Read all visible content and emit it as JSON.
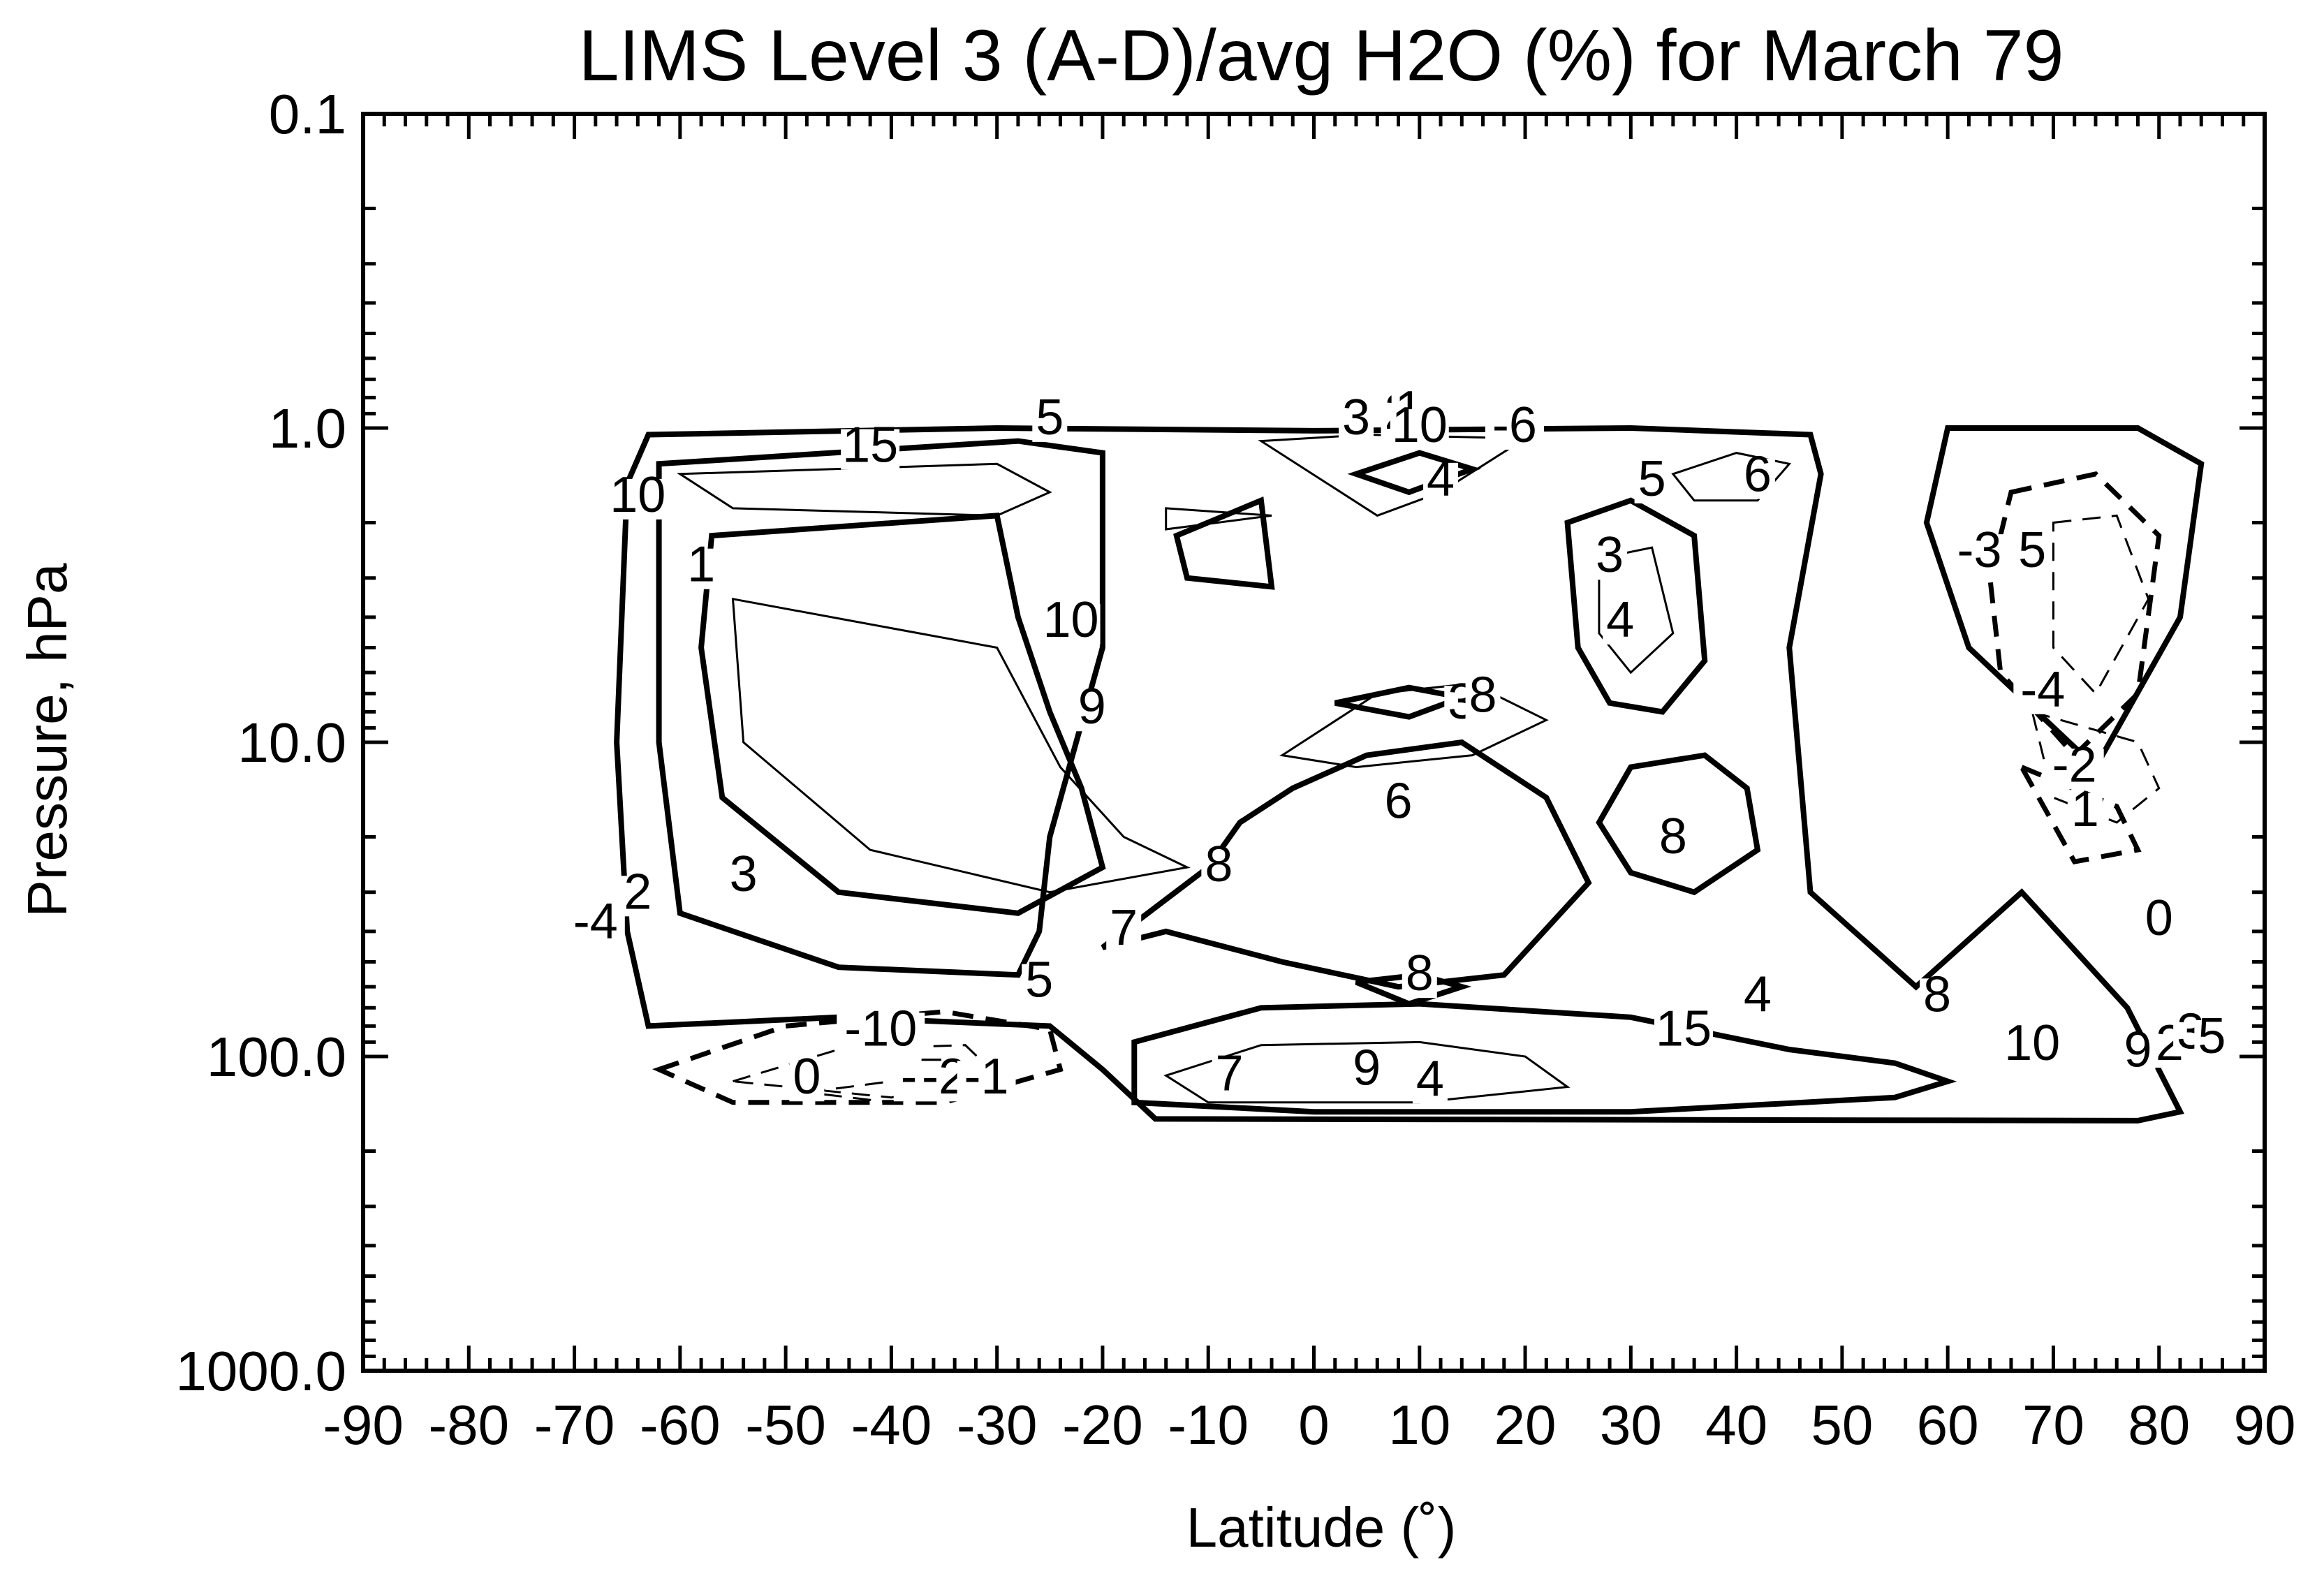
{
  "chart_data": {
    "type": "contour",
    "title": "LIMS Level 3 (A-D)/avg H2O (%) for March 79",
    "xlabel": "Latitude (˚)",
    "ylabel": "Pressure, hPa",
    "xlim": [
      -90,
      90
    ],
    "ylim": [
      1000.0,
      0.1
    ],
    "y_scale": "log",
    "x_ticks": [
      -90,
      -80,
      -70,
      -60,
      -50,
      -40,
      -30,
      -20,
      -10,
      0,
      10,
      20,
      30,
      40,
      50,
      60,
      70,
      80,
      90
    ],
    "x_tick_labels": [
      "-90",
      "-80",
      "-70",
      "-60",
      "-50",
      "-40",
      "-30",
      "-20",
      "-10",
      "0",
      "10",
      "20",
      "30",
      "40",
      "50",
      "60",
      "70",
      "80",
      "90"
    ],
    "y_ticks": [
      0.1,
      1.0,
      10.0,
      100.0,
      1000.0
    ],
    "y_tick_labels": [
      "0.1",
      "1.0",
      "10.0",
      "100.0",
      "1000.0"
    ],
    "grid": false,
    "legend": "none",
    "negative_contours": "dashed",
    "contours": [
      {
        "style": "solid-thick",
        "level": 0,
        "points": [
          [
            -65,
            1.5
          ],
          [
            -63,
            1.05
          ],
          [
            -30,
            1.0
          ],
          [
            0,
            1.02
          ],
          [
            30,
            1.0
          ],
          [
            47,
            1.05
          ],
          [
            48,
            1.4
          ],
          [
            45,
            5
          ],
          [
            47,
            30
          ],
          [
            57,
            60
          ],
          [
            67,
            30
          ],
          [
            77,
            70
          ],
          [
            82,
            150
          ],
          [
            78,
            160
          ],
          [
            -15,
            158
          ],
          [
            -20,
            110
          ],
          [
            -25,
            80
          ],
          [
            -45,
            75
          ],
          [
            -63,
            80
          ],
          [
            -65,
            40
          ],
          [
            -66,
            10
          ],
          [
            -65,
            1.5
          ]
        ]
      },
      {
        "style": "solid-thick",
        "level": 5,
        "points": [
          [
            -62,
            1.3
          ],
          [
            -28,
            1.1
          ],
          [
            -20,
            1.2
          ],
          [
            -20,
            5
          ],
          [
            -25,
            20
          ],
          [
            -26,
            40
          ],
          [
            -28,
            55
          ],
          [
            -45,
            52
          ],
          [
            -60,
            35
          ],
          [
            -62,
            10
          ],
          [
            -62,
            1.3
          ]
        ]
      },
      {
        "style": "solid-thin",
        "level": 15,
        "points": [
          [
            -60,
            1.4
          ],
          [
            -30,
            1.3
          ],
          [
            -25,
            1.6
          ],
          [
            -30,
            1.9
          ],
          [
            -55,
            1.8
          ],
          [
            -60,
            1.4
          ]
        ]
      },
      {
        "style": "solid-thick",
        "level": 10,
        "points": [
          [
            -57,
            2.2
          ],
          [
            -30,
            1.9
          ],
          [
            -28,
            4
          ],
          [
            -25,
            8
          ],
          [
            -22,
            14
          ],
          [
            -20,
            25
          ],
          [
            -28,
            35
          ],
          [
            -45,
            30
          ],
          [
            -56,
            15
          ],
          [
            -58,
            5
          ],
          [
            -57,
            2.2
          ]
        ]
      },
      {
        "style": "solid-thin",
        "level": 9,
        "points": [
          [
            -55,
            3.5
          ],
          [
            -30,
            5
          ],
          [
            -24,
            12
          ],
          [
            -18,
            20
          ],
          [
            -12,
            25
          ],
          [
            -25,
            30
          ],
          [
            -42,
            22
          ],
          [
            -54,
            10
          ],
          [
            -55,
            3.5
          ]
        ]
      },
      {
        "style": "solid-thick",
        "level": 8,
        "points": [
          [
            -13,
            2.2
          ],
          [
            -5,
            1.7
          ],
          [
            -4,
            3.2
          ],
          [
            -12,
            3.0
          ],
          [
            -13,
            2.2
          ]
        ]
      },
      {
        "style": "solid-thin",
        "level": 9,
        "points": [
          [
            -14,
            1.8
          ],
          [
            -4,
            1.9
          ],
          [
            -14,
            2.1
          ],
          [
            -14,
            1.8
          ]
        ]
      },
      {
        "style": "solid-thick",
        "level": 8,
        "points": [
          [
            -7,
            18
          ],
          [
            -2,
            14
          ],
          [
            5,
            11
          ],
          [
            14,
            10
          ],
          [
            22,
            15
          ],
          [
            26,
            28
          ],
          [
            18,
            55
          ],
          [
            8,
            60
          ],
          [
            -3,
            50
          ],
          [
            -14,
            40
          ],
          [
            -20,
            45
          ],
          [
            -10,
            25
          ],
          [
            -7,
            18
          ]
        ]
      },
      {
        "style": "solid-thin",
        "level": 6,
        "points": [
          [
            -3,
            11
          ],
          [
            6,
            7
          ],
          [
            15,
            6.5
          ],
          [
            22,
            8.5
          ],
          [
            15,
            11
          ],
          [
            4,
            12
          ],
          [
            -3,
            11
          ]
        ]
      },
      {
        "style": "solid-thick",
        "level": 9,
        "points": [
          [
            2,
            7.5
          ],
          [
            9,
            6.7
          ],
          [
            14,
            7.2
          ],
          [
            9,
            8.3
          ],
          [
            2,
            7.5
          ]
        ]
      },
      {
        "style": "solid-thick",
        "level": 4,
        "points": [
          [
            24,
            2.0
          ],
          [
            30,
            1.7
          ],
          [
            36,
            2.2
          ],
          [
            37,
            5.5
          ],
          [
            33,
            8
          ],
          [
            28,
            7.5
          ],
          [
            25,
            5
          ],
          [
            24,
            2.0
          ]
        ]
      },
      {
        "style": "solid-thin",
        "level": 3,
        "points": [
          [
            27,
            2.6
          ],
          [
            32,
            2.4
          ],
          [
            34,
            4.5
          ],
          [
            30,
            6
          ],
          [
            27,
            4.5
          ],
          [
            27,
            2.6
          ]
        ]
      },
      {
        "style": "solid-thick",
        "level": 8,
        "points": [
          [
            30,
            12
          ],
          [
            37,
            11
          ],
          [
            41,
            14
          ],
          [
            42,
            22
          ],
          [
            36,
            30
          ],
          [
            30,
            26
          ],
          [
            27,
            18
          ],
          [
            30,
            12
          ]
        ]
      },
      {
        "style": "solid-thin",
        "level": 6,
        "points": [
          [
            -5,
            1.1
          ],
          [
            5,
            1.05
          ],
          [
            20,
            1.08
          ],
          [
            12,
            1.6
          ],
          [
            6,
            1.9
          ],
          [
            -5,
            1.1
          ]
        ]
      },
      {
        "style": "solid-thick",
        "level": 4,
        "points": [
          [
            4,
            1.4
          ],
          [
            10,
            1.2
          ],
          [
            15,
            1.35
          ],
          [
            9,
            1.6
          ],
          [
            4,
            1.4
          ]
        ]
      },
      {
        "style": "solid-thin",
        "level": 6,
        "points": [
          [
            34,
            1.4
          ],
          [
            40,
            1.2
          ],
          [
            45,
            1.3
          ],
          [
            42,
            1.7
          ],
          [
            36,
            1.7
          ],
          [
            34,
            1.4
          ]
        ]
      },
      {
        "style": "solid-thick",
        "level": 15,
        "points": [
          [
            -17,
            90
          ],
          [
            -5,
            70
          ],
          [
            10,
            68
          ],
          [
            30,
            75
          ],
          [
            45,
            95
          ],
          [
            55,
            105
          ],
          [
            60,
            120
          ],
          [
            55,
            135
          ],
          [
            30,
            150
          ],
          [
            0,
            150
          ],
          [
            -17,
            140
          ],
          [
            -17,
            90
          ]
        ]
      },
      {
        "style": "solid-thin",
        "level": 7,
        "points": [
          [
            -14,
            115
          ],
          [
            -5,
            92
          ],
          [
            10,
            90
          ],
          [
            20,
            100
          ],
          [
            24,
            125
          ],
          [
            10,
            140
          ],
          [
            -10,
            140
          ],
          [
            -14,
            115
          ]
        ]
      },
      {
        "style": "solid-thick",
        "level": 9,
        "points": [
          [
            4,
            58
          ],
          [
            10,
            55
          ],
          [
            14,
            60
          ],
          [
            9,
            68
          ],
          [
            4,
            58
          ]
        ]
      },
      {
        "style": "solid-thick",
        "level": 0,
        "points": [
          [
            60,
            1.0
          ],
          [
            78,
            1.0
          ],
          [
            84,
            1.3
          ],
          [
            82,
            4
          ],
          [
            74,
            12
          ],
          [
            62,
            5
          ],
          [
            58,
            2
          ],
          [
            60,
            1.0
          ]
        ]
      },
      {
        "style": "dashed-thick",
        "level": -3,
        "points": [
          [
            66,
            1.6
          ],
          [
            74,
            1.4
          ],
          [
            80,
            2.2
          ],
          [
            78,
            7
          ],
          [
            72,
            11
          ],
          [
            65,
            6
          ],
          [
            64,
            3
          ],
          [
            66,
            1.6
          ]
        ]
      },
      {
        "style": "dashed-thin",
        "level": -5,
        "points": [
          [
            70,
            2.0
          ],
          [
            76,
            1.9
          ],
          [
            79,
            3.5
          ],
          [
            74,
            7
          ],
          [
            70,
            5
          ],
          [
            70,
            2.0
          ]
        ]
      },
      {
        "style": "dashed-thin",
        "level": -4,
        "points": [
          [
            68,
            8
          ],
          [
            78,
            10
          ],
          [
            80,
            14
          ],
          [
            76,
            18
          ],
          [
            70,
            15
          ],
          [
            68,
            8
          ]
        ]
      },
      {
        "style": "dashed-thick",
        "level": -2,
        "points": [
          [
            67,
            12
          ],
          [
            76,
            16
          ],
          [
            78,
            22
          ],
          [
            72,
            24
          ],
          [
            67,
            12
          ]
        ]
      },
      {
        "style": "dashed-thick",
        "level": -10,
        "points": [
          [
            -62,
            110
          ],
          [
            -50,
            80
          ],
          [
            -35,
            72
          ],
          [
            -25,
            82
          ],
          [
            -24,
            110
          ],
          [
            -35,
            140
          ],
          [
            -55,
            140
          ],
          [
            -62,
            110
          ]
        ]
      },
      {
        "style": "dashed-thin",
        "level": -5,
        "points": [
          [
            -55,
            120
          ],
          [
            -45,
            95
          ],
          [
            -33,
            92
          ],
          [
            -30,
            115
          ],
          [
            -40,
            135
          ],
          [
            -55,
            120
          ]
        ]
      },
      {
        "style": "dashed-thin",
        "level": -2,
        "points": [
          [
            -48,
            130
          ],
          [
            -40,
            120
          ],
          [
            -34,
            125
          ],
          [
            -40,
            140
          ],
          [
            -48,
            130
          ]
        ]
      }
    ],
    "contour_labels": [
      {
        "text": "15",
        "x": -42,
        "y": 1.25
      },
      {
        "text": "5",
        "x": -25,
        "y": 1.02
      },
      {
        "text": "10",
        "x": -64,
        "y": 1.8
      },
      {
        "text": "1",
        "x": -58,
        "y": 3.0
      },
      {
        "text": "10",
        "x": -23,
        "y": 4.5
      },
      {
        "text": "9",
        "x": -21,
        "y": 8.5
      },
      {
        "text": "8",
        "x": -9,
        "y": 27
      },
      {
        "text": "7",
        "x": -18,
        "y": 43
      },
      {
        "text": "5",
        "x": -26,
        "y": 63
      },
      {
        "text": "2",
        "x": -64,
        "y": 33
      },
      {
        "text": "-4",
        "x": -68,
        "y": 41
      },
      {
        "text": "3",
        "x": -54,
        "y": 29
      },
      {
        "text": "-10",
        "x": -41,
        "y": 90
      },
      {
        "text": "0",
        "x": -48,
        "y": 128
      },
      {
        "text": "-5",
        "x": -37,
        "y": 128
      },
      {
        "text": "-2",
        "x": -35,
        "y": 128
      },
      {
        "text": "-1",
        "x": -31,
        "y": 128
      },
      {
        "text": "3",
        "x": 4,
        "y": 1.02
      },
      {
        "text": "2",
        "x": 8,
        "y": 0.98
      },
      {
        "text": "1",
        "x": 9,
        "y": 0.96
      },
      {
        "text": "10",
        "x": 10,
        "y": 1.08
      },
      {
        "text": "-6",
        "x": 19,
        "y": 1.08
      },
      {
        "text": "4",
        "x": 12,
        "y": 1.6
      },
      {
        "text": "5",
        "x": 32,
        "y": 1.6
      },
      {
        "text": "6",
        "x": 42,
        "y": 1.55
      },
      {
        "text": "3",
        "x": 28,
        "y": 2.8
      },
      {
        "text": "4",
        "x": 29,
        "y": 4.5
      },
      {
        "text": "3",
        "x": 14,
        "y": 8.2
      },
      {
        "text": "8",
        "x": 16,
        "y": 7.8
      },
      {
        "text": "6",
        "x": 8,
        "y": 17
      },
      {
        "text": "8",
        "x": 34,
        "y": 22
      },
      {
        "text": "4",
        "x": 42,
        "y": 70
      },
      {
        "text": "15",
        "x": 35,
        "y": 90
      },
      {
        "text": "9",
        "x": 5,
        "y": 120
      },
      {
        "text": "4",
        "x": 11,
        "y": 130
      },
      {
        "text": "7",
        "x": -8,
        "y": 125
      },
      {
        "text": "8",
        "x": 10,
        "y": 60
      },
      {
        "text": "8",
        "x": 59,
        "y": 70
      },
      {
        "text": "10",
        "x": 68,
        "y": 100
      },
      {
        "text": "-3",
        "x": 63,
        "y": 2.7
      },
      {
        "text": "5",
        "x": 68,
        "y": 2.7
      },
      {
        "text": "-4",
        "x": 69,
        "y": 7.5
      },
      {
        "text": "-2",
        "x": 72,
        "y": 13
      },
      {
        "text": "1",
        "x": 73,
        "y": 18
      },
      {
        "text": "0",
        "x": 80,
        "y": 40
      },
      {
        "text": "9",
        "x": 78,
        "y": 105
      },
      {
        "text": "2",
        "x": 81,
        "y": 100
      },
      {
        "text": "3",
        "x": 83,
        "y": 92
      },
      {
        "text": "5",
        "x": 85,
        "y": 95
      }
    ]
  }
}
